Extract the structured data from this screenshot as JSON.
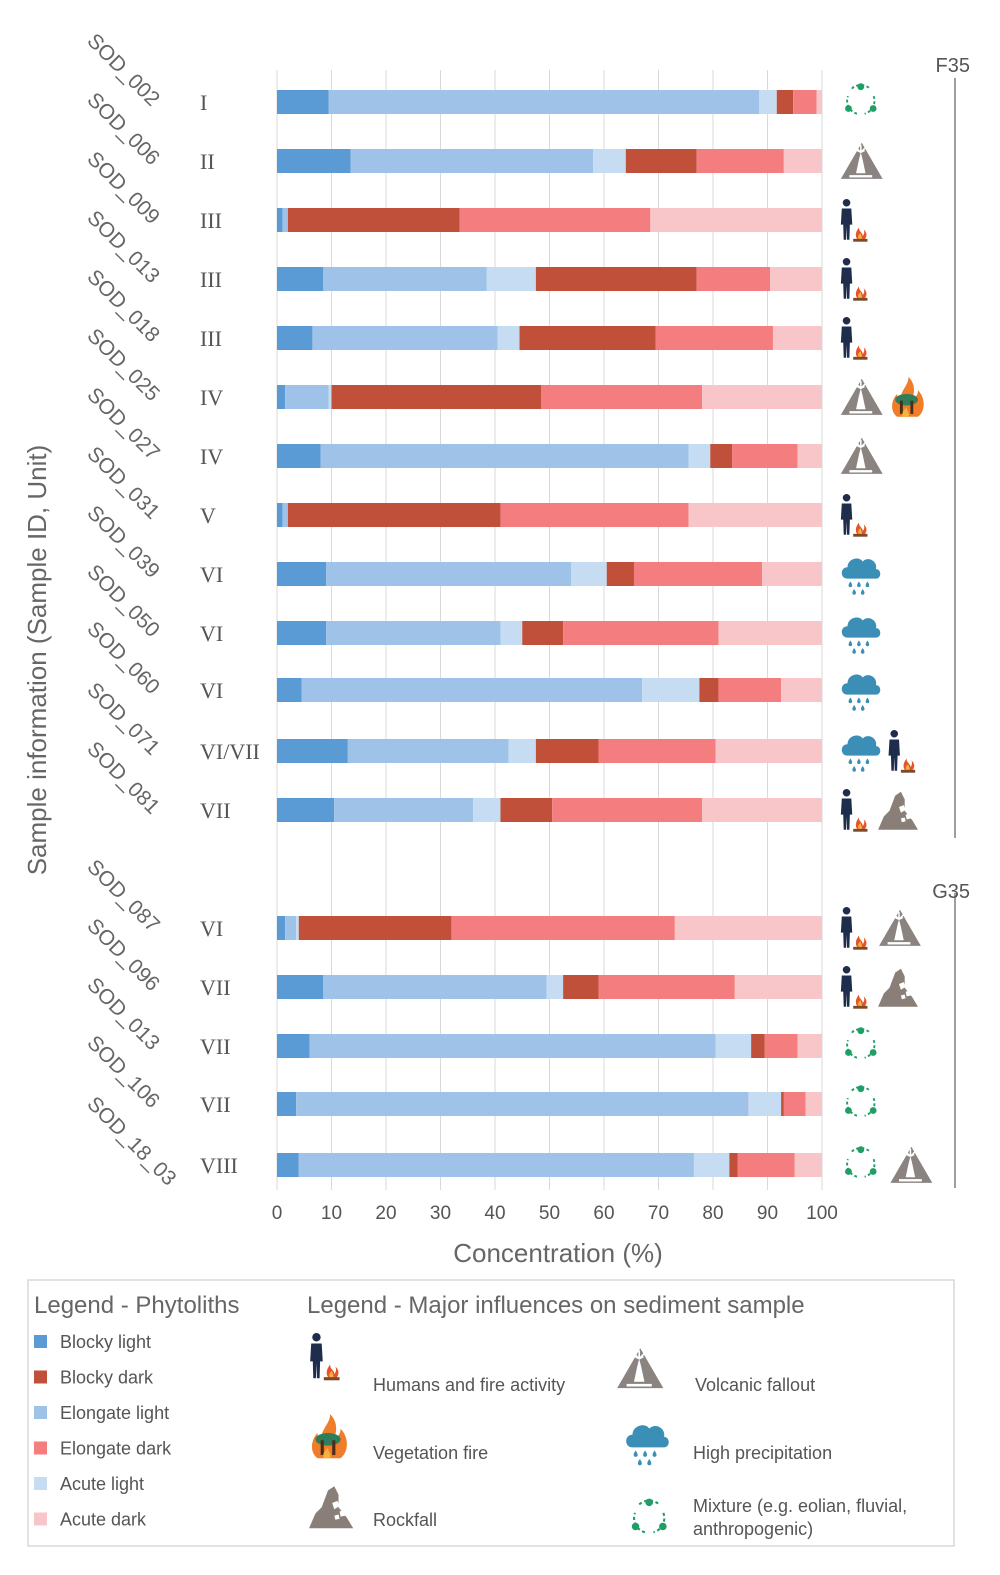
{
  "chart_data": {
    "type": "bar",
    "stacked": true,
    "orientation": "horizontal",
    "xlabel": "Concentration (%)",
    "ylabel": "Sample information (Sample ID, Unit)",
    "xlim": [
      0,
      100
    ],
    "xticks": [
      0,
      10,
      20,
      30,
      40,
      50,
      60,
      70,
      80,
      90,
      100
    ],
    "series_names": [
      "Blocky light",
      "Elongate light",
      "Acute light",
      "Blocky dark",
      "Elongate dark",
      "Acute dark"
    ],
    "series_colors": [
      "#5b9bd5",
      "#9fc3e8",
      "#c5dcf2",
      "#c0503a",
      "#f47e7f",
      "#f8c6c8"
    ],
    "groups": [
      {
        "label": "F35",
        "samples": [
          {
            "id": "SOD_002",
            "unit": "I",
            "values": [
              9.5,
              79,
              3.2,
              3,
              4.3,
              1
            ],
            "influences": [
              "mixture"
            ]
          },
          {
            "id": "SOD_006",
            "unit": "II",
            "values": [
              13.5,
              44.5,
              6,
              13,
              16,
              7
            ],
            "influences": [
              "volcanic"
            ]
          },
          {
            "id": "SOD_009",
            "unit": "III",
            "values": [
              1,
              1,
              0,
              31.5,
              35,
              31.5
            ],
            "influences": [
              "humans"
            ]
          },
          {
            "id": "SOD_013",
            "unit": "III",
            "values": [
              8.5,
              30,
              9,
              29.5,
              13.5,
              9.5
            ],
            "influences": [
              "humans"
            ]
          },
          {
            "id": "SOD_018",
            "unit": "III",
            "values": [
              6.5,
              34,
              4,
              25,
              21.5,
              9
            ],
            "influences": [
              "humans"
            ]
          },
          {
            "id": "SOD_025",
            "unit": "IV",
            "values": [
              1.5,
              8,
              0.5,
              38.5,
              29.5,
              22
            ],
            "influences": [
              "volcanic",
              "vegetation"
            ]
          },
          {
            "id": "SOD_027",
            "unit": "IV",
            "values": [
              8,
              67.5,
              4,
              4,
              12,
              4.5
            ],
            "influences": [
              "volcanic"
            ]
          },
          {
            "id": "SOD_031",
            "unit": "V",
            "values": [
              1,
              1,
              0,
              39,
              34.5,
              24.5
            ],
            "influences": [
              "humans"
            ]
          },
          {
            "id": "SOD_039",
            "unit": "VI",
            "values": [
              9,
              45,
              6.5,
              5,
              23.5,
              11
            ],
            "influences": [
              "rain"
            ]
          },
          {
            "id": "SOD_050",
            "unit": "VI",
            "values": [
              9,
              32,
              4,
              7.5,
              28.5,
              19
            ],
            "influences": [
              "rain"
            ]
          },
          {
            "id": "SOD_060",
            "unit": "VI",
            "values": [
              4.5,
              62.5,
              10.5,
              3.5,
              11.5,
              7.5
            ],
            "influences": [
              "rain"
            ]
          },
          {
            "id": "SOD_071",
            "unit": "VI/VII",
            "values": [
              13,
              29.5,
              5,
              11.5,
              21.5,
              19.5
            ],
            "influences": [
              "rain",
              "humans"
            ]
          },
          {
            "id": "SOD_081",
            "unit": "VII",
            "values": [
              10.5,
              25.5,
              5,
              9.5,
              27.5,
              22
            ],
            "influences": [
              "humans",
              "rockfall"
            ]
          }
        ]
      },
      {
        "label": "G35",
        "samples": [
          {
            "id": "SOD_087",
            "unit": "VI",
            "values": [
              1.5,
              2,
              0.5,
              28,
              41,
              27
            ],
            "influences": [
              "humans",
              "volcanic"
            ]
          },
          {
            "id": "SOD_096",
            "unit": "VII",
            "values": [
              8.5,
              41,
              3,
              6.5,
              25,
              16
            ],
            "influences": [
              "humans",
              "rockfall"
            ]
          },
          {
            "id": "SOD_013",
            "unit": "VII",
            "values": [
              6,
              74.5,
              6.5,
              2.5,
              6,
              4.5
            ],
            "influences": [
              "mixture"
            ]
          },
          {
            "id": "SOD_106",
            "unit": "VII",
            "values": [
              3.5,
              83,
              6,
              0.5,
              4,
              3
            ],
            "influences": [
              "mixture"
            ]
          },
          {
            "id": "SOD_18_03",
            "unit": "VIII",
            "values": [
              4,
              72.5,
              6.5,
              1.5,
              10.5,
              5
            ],
            "influences": [
              "mixture",
              "volcanic"
            ]
          }
        ]
      }
    ]
  },
  "legend_phytoliths": {
    "title": "Legend - Phytoliths",
    "items": [
      {
        "label": "Blocky light",
        "color": "#5b9bd5"
      },
      {
        "label": "Blocky dark",
        "color": "#c0503a"
      },
      {
        "label": "Elongate light",
        "color": "#9fc3e8"
      },
      {
        "label": "Elongate dark",
        "color": "#f47e7f"
      },
      {
        "label": "Acute light",
        "color": "#c5dcf2"
      },
      {
        "label": "Acute dark",
        "color": "#f8c6c8"
      }
    ]
  },
  "legend_influences": {
    "title": "Legend - Major influences on sediment sample",
    "items": [
      {
        "key": "humans",
        "label": "Humans and fire activity",
        "icon": "human-fire-icon"
      },
      {
        "key": "volcanic",
        "label": "Volcanic fallout",
        "icon": "volcano-icon"
      },
      {
        "key": "vegetation",
        "label": "Vegetation fire",
        "icon": "vegetation-fire-icon"
      },
      {
        "key": "rain",
        "label": "High precipitation",
        "icon": "rain-cloud-icon"
      },
      {
        "key": "rockfall",
        "label": "Rockfall",
        "icon": "rockfall-icon"
      },
      {
        "key": "mixture",
        "label": "Mixture (e.g. eolian, fluvial,",
        "label2": "anthropogenic)",
        "icon": "mixture-icon"
      }
    ]
  }
}
